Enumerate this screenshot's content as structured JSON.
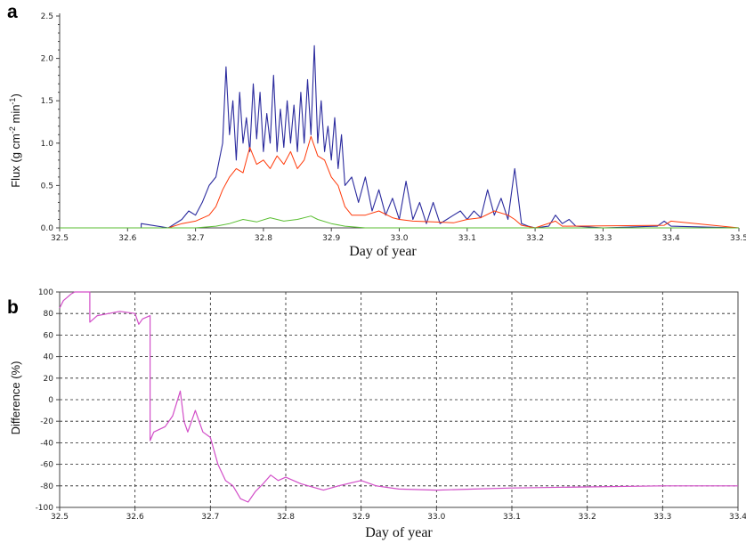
{
  "panels": [
    {
      "label": "a",
      "ylabel_main": "Flux (g cm",
      "ylabel_sup1": "-2",
      "ylabel_mid": " min",
      "ylabel_sup2": "-1",
      "ylabel_end": ")",
      "xlabel": "Day of year",
      "xticks": [
        "32.5",
        "32.6",
        "32.7",
        "32.8",
        "32.9",
        "33.0",
        "33.1",
        "33.2",
        "33.3",
        "33.4",
        "33.5"
      ],
      "yticks": [
        "0.0",
        "0.5",
        "1.0",
        "1.5",
        "2.0",
        "2.5"
      ]
    },
    {
      "label": "b",
      "ylabel": "Difference (%)",
      "xlabel": "Day of year",
      "xticks": [
        "32.5",
        "32.6",
        "32.7",
        "32.8",
        "32.9",
        "33.0",
        "33.1",
        "33.2",
        "33.3",
        "33.4"
      ],
      "yticks": [
        "100",
        "80",
        "60",
        "40",
        "20",
        "0",
        "-20",
        "-40",
        "-60",
        "-80",
        "-100"
      ]
    }
  ],
  "chart_data": [
    {
      "type": "line",
      "xlim": [
        32.5,
        33.5
      ],
      "ylim": [
        0,
        2.5
      ],
      "grid": false,
      "series": [
        {
          "color": "#2b2b9e",
          "x": [
            32.5,
            32.6,
            32.62,
            32.62,
            32.66,
            32.68,
            32.69,
            32.7,
            32.71,
            32.72,
            32.73,
            32.74,
            32.745,
            32.75,
            32.755,
            32.76,
            32.765,
            32.77,
            32.775,
            32.78,
            32.785,
            32.79,
            32.795,
            32.8,
            32.805,
            32.81,
            32.815,
            32.82,
            32.825,
            32.83,
            32.835,
            32.84,
            32.845,
            32.85,
            32.855,
            32.86,
            32.865,
            32.87,
            32.875,
            32.88,
            32.885,
            32.89,
            32.895,
            32.9,
            32.905,
            32.91,
            32.915,
            32.92,
            32.93,
            32.94,
            32.95,
            32.96,
            32.97,
            32.98,
            32.99,
            33.0,
            33.01,
            33.02,
            33.03,
            33.04,
            33.05,
            33.06,
            33.07,
            33.08,
            33.09,
            33.1,
            33.11,
            33.12,
            33.13,
            33.14,
            33.15,
            33.16,
            33.17,
            33.18,
            33.19,
            33.2,
            33.22,
            33.23,
            33.24,
            33.25,
            33.26,
            33.3,
            33.38,
            33.39,
            33.4,
            33.5
          ],
          "y": [
            0,
            0,
            0,
            0.05,
            0,
            0.1,
            0.2,
            0.15,
            0.3,
            0.5,
            0.6,
            1.0,
            1.9,
            1.1,
            1.5,
            0.8,
            1.6,
            1.0,
            1.3,
            0.9,
            1.7,
            1.05,
            1.6,
            0.9,
            1.35,
            1.0,
            1.8,
            0.9,
            1.4,
            0.95,
            1.5,
            1.0,
            1.45,
            0.9,
            1.6,
            1.0,
            1.75,
            1.1,
            2.15,
            1.0,
            1.5,
            0.9,
            1.2,
            0.8,
            1.3,
            0.7,
            1.1,
            0.5,
            0.6,
            0.3,
            0.6,
            0.2,
            0.45,
            0.15,
            0.35,
            0.1,
            0.55,
            0.1,
            0.3,
            0.05,
            0.3,
            0.05,
            0.1,
            0.15,
            0.2,
            0.1,
            0.2,
            0.12,
            0.45,
            0.15,
            0.35,
            0.1,
            0.7,
            0.05,
            0.02,
            0,
            0.02,
            0.15,
            0.05,
            0.1,
            0.02,
            0,
            0.02,
            0.08,
            0.02,
            0
          ]
        },
        {
          "color": "#ff3a0a",
          "x": [
            32.5,
            32.66,
            32.68,
            32.7,
            32.72,
            32.73,
            32.74,
            32.75,
            32.76,
            32.77,
            32.78,
            32.79,
            32.8,
            32.81,
            32.82,
            32.83,
            32.84,
            32.85,
            32.86,
            32.87,
            32.88,
            32.89,
            32.9,
            32.91,
            32.92,
            32.93,
            32.95,
            32.97,
            32.99,
            33.0,
            33.02,
            33.05,
            33.08,
            33.1,
            33.12,
            33.14,
            33.16,
            33.17,
            33.18,
            33.2,
            33.23,
            33.24,
            33.39,
            33.4,
            33.5
          ],
          "y": [
            0,
            0,
            0.05,
            0.08,
            0.15,
            0.25,
            0.45,
            0.6,
            0.7,
            0.65,
            0.95,
            0.75,
            0.8,
            0.7,
            0.85,
            0.75,
            0.9,
            0.7,
            0.8,
            1.08,
            0.85,
            0.8,
            0.6,
            0.5,
            0.25,
            0.15,
            0.15,
            0.2,
            0.12,
            0.1,
            0.08,
            0.07,
            0.06,
            0.1,
            0.12,
            0.2,
            0.15,
            0.1,
            0.03,
            0,
            0.08,
            0.02,
            0.03,
            0.08,
            0
          ]
        },
        {
          "color": "#5abe32",
          "x": [
            32.5,
            32.7,
            32.73,
            32.75,
            32.77,
            32.79,
            32.81,
            32.83,
            32.85,
            32.87,
            32.88,
            32.9,
            32.92,
            32.95,
            33.5
          ],
          "y": [
            0,
            0,
            0.02,
            0.05,
            0.1,
            0.07,
            0.12,
            0.08,
            0.1,
            0.14,
            0.1,
            0.05,
            0.02,
            0,
            0
          ]
        }
      ]
    },
    {
      "type": "line",
      "xlim": [
        32.5,
        33.4
      ],
      "ylim": [
        -100,
        100
      ],
      "grid": true,
      "series": [
        {
          "color": "#d24ec8",
          "x": [
            32.5,
            32.505,
            32.51,
            32.515,
            32.52,
            32.54,
            32.54,
            32.55,
            32.58,
            32.6,
            32.605,
            32.61,
            32.62,
            32.62,
            32.625,
            32.64,
            32.65,
            32.66,
            32.665,
            32.67,
            32.675,
            32.68,
            32.69,
            32.7,
            32.71,
            32.72,
            32.73,
            32.74,
            32.75,
            32.76,
            32.77,
            32.78,
            32.79,
            32.8,
            32.82,
            32.85,
            32.87,
            32.9,
            32.92,
            32.95,
            33.0,
            33.05,
            33.1,
            33.2,
            33.3,
            33.4
          ],
          "y": [
            85,
            92,
            95,
            98,
            100,
            100,
            72,
            78,
            82,
            80,
            70,
            75,
            78,
            -38,
            -30,
            -25,
            -15,
            8,
            -20,
            -30,
            -20,
            -10,
            -30,
            -35,
            -60,
            -75,
            -80,
            -92,
            -95,
            -85,
            -78,
            -70,
            -75,
            -72,
            -78,
            -84,
            -80,
            -75,
            -80,
            -83,
            -84,
            -83,
            -82,
            -81,
            -80,
            -80
          ]
        }
      ]
    }
  ]
}
